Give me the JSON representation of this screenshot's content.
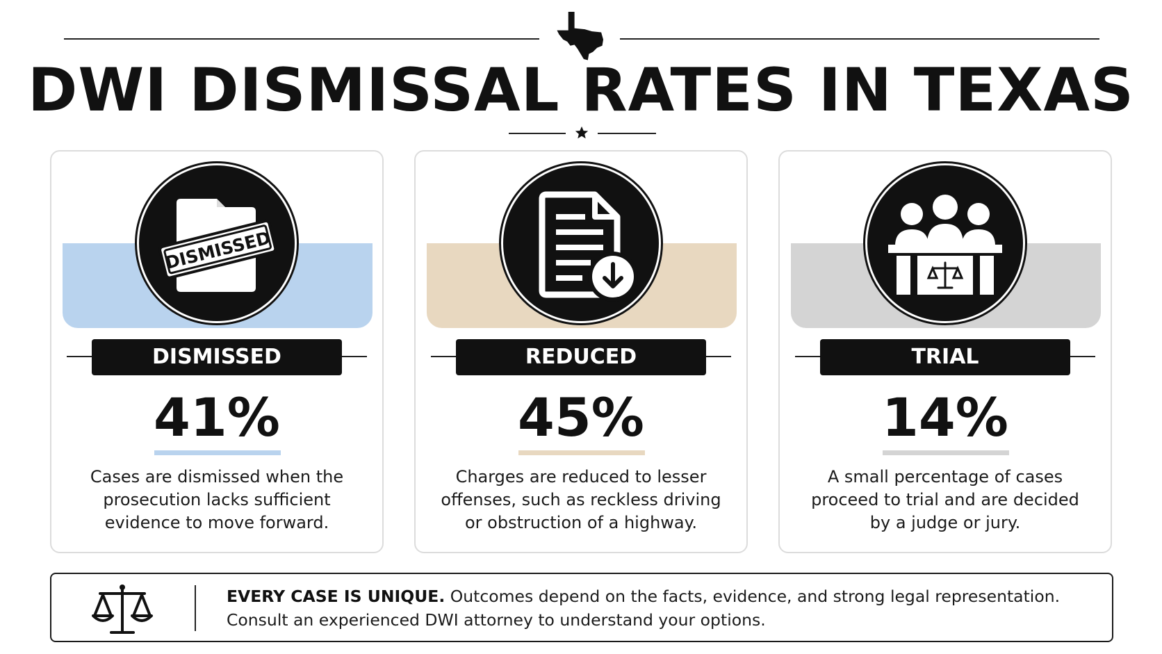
{
  "header": {
    "title": "DWI DISMISSAL RATES IN TEXAS",
    "top_icon": "texas-state-icon",
    "divider_icon": "star-icon"
  },
  "cards": [
    {
      "icon": "dismissed-stamp-folder-icon",
      "stamp_text": "DISMISSED",
      "label": "DISMISSED",
      "percent": "41%",
      "value": 41,
      "accent": "#b9d3ee",
      "description": [
        "Cases are dismissed when the",
        "prosecution lacks sufficient",
        "evidence to move forward."
      ]
    },
    {
      "icon": "document-download-icon",
      "label": "REDUCED",
      "percent": "45%",
      "value": 45,
      "accent": "#e8d8c0",
      "description": [
        "Charges are reduced to lesser",
        "offenses, such as reckless driving",
        "or obstruction of a highway."
      ]
    },
    {
      "icon": "jury-courtroom-icon",
      "label": "TRIAL",
      "percent": "14%",
      "value": 14,
      "accent": "#d4d4d4",
      "description": [
        "A small percentage of cases",
        "proceed to trial and are decided",
        "by a judge or jury."
      ]
    }
  ],
  "footer": {
    "icon": "scales-of-justice-icon",
    "bold": "EVERY CASE IS UNIQUE.",
    "line1_rest": " Outcomes depend on the facts, evidence, and strong legal representation.",
    "line2": "Consult an experienced DWI attorney to understand your options."
  }
}
